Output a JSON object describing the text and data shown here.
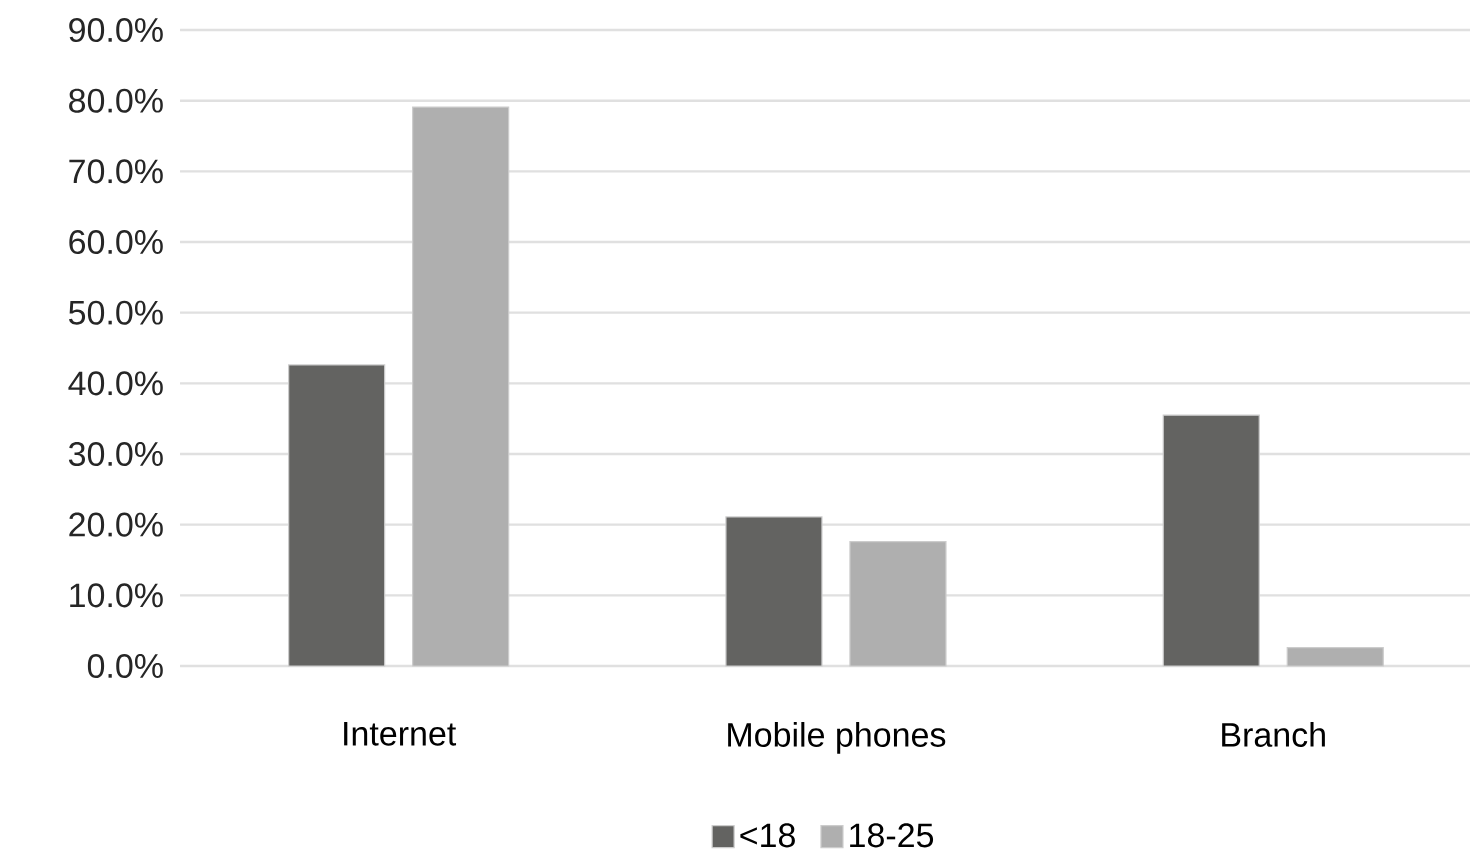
{
  "chart_data": {
    "type": "bar",
    "categories": [
      "Internet",
      "Mobile phones",
      "Branch"
    ],
    "series": [
      {
        "name": "<18",
        "color": "#636361",
        "values": [
          42.6,
          21.1,
          35.5
        ]
      },
      {
        "name": "18-25",
        "color": "#afafaf",
        "values": [
          79.1,
          17.6,
          2.6
        ]
      }
    ],
    "ylim": [
      0,
      90
    ],
    "yticks": [
      {
        "value": 0,
        "label": "0.0%"
      },
      {
        "value": 10,
        "label": "10.0%"
      },
      {
        "value": 20,
        "label": "20.0%"
      },
      {
        "value": 30,
        "label": "30.0%"
      },
      {
        "value": 40,
        "label": "40.0%"
      },
      {
        "value": 50,
        "label": "50.0%"
      },
      {
        "value": 60,
        "label": "60.0%"
      },
      {
        "value": 70,
        "label": "70.0%"
      },
      {
        "value": 80,
        "label": "80.0%"
      },
      {
        "value": 90,
        "label": "90.0%"
      }
    ],
    "grid": "y",
    "legend": "bottom"
  }
}
